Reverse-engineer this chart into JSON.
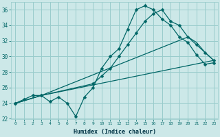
{
  "xlabel": "Humidex (Indice chaleur)",
  "background_color": "#cce8e8",
  "grid_color": "#99cccc",
  "line_color": "#006666",
  "xlim": [
    -0.5,
    23.5
  ],
  "ylim": [
    22,
    37
  ],
  "yticks": [
    22,
    24,
    26,
    28,
    30,
    32,
    34,
    36
  ],
  "xticks": [
    0,
    1,
    2,
    3,
    4,
    5,
    6,
    7,
    8,
    9,
    10,
    11,
    12,
    13,
    14,
    15,
    16,
    17,
    18,
    19,
    20,
    21,
    22,
    23
  ],
  "series": [
    {
      "x": [
        0,
        1,
        2,
        3,
        4,
        5,
        6,
        7,
        8,
        9,
        10,
        11,
        12,
        13,
        14,
        15,
        16,
        17,
        18,
        19,
        20,
        21,
        22,
        23
      ],
      "y": [
        24,
        24.5,
        25,
        25,
        24.2,
        24.8,
        24.0,
        22.3,
        24.8,
        26.0,
        28.5,
        30.0,
        31.0,
        33.5,
        36.0,
        36.5,
        36.0,
        34.8,
        34.0,
        32.5,
        31.8,
        30.2,
        29.0,
        29.2
      ],
      "marker": true
    },
    {
      "x": [
        0,
        3,
        9,
        10,
        11,
        12,
        13,
        14,
        15,
        16,
        17,
        18,
        19,
        20,
        21,
        22,
        23
      ],
      "y": [
        24,
        25,
        26.5,
        27.5,
        28.5,
        30.0,
        31.5,
        33.0,
        34.5,
        35.5,
        36.0,
        34.5,
        34.0,
        32.5,
        31.5,
        30.5,
        29.5
      ],
      "marker": true
    },
    {
      "x": [
        0,
        3,
        20,
        21,
        22,
        23
      ],
      "y": [
        24,
        25,
        32.5,
        31.8,
        30.5,
        29.5
      ],
      "marker": false
    },
    {
      "x": [
        0,
        3,
        23
      ],
      "y": [
        24,
        25,
        29.5
      ],
      "marker": false
    }
  ]
}
